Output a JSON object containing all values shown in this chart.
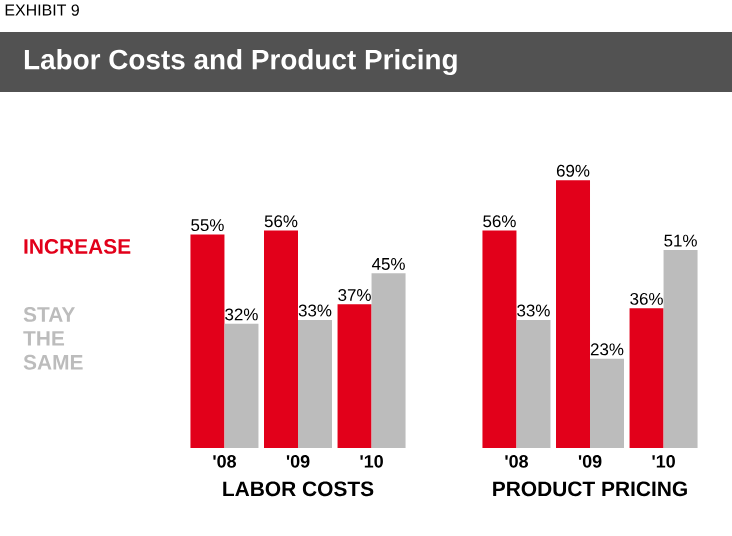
{
  "chart_data": [
    {
      "type": "bar",
      "title": "Labor Costs and Product Pricing",
      "annotations": [
        "EXHIBIT 9"
      ],
      "xlabel": "LABOR COSTS",
      "categories": [
        "'08",
        "'09",
        "'10"
      ],
      "legend": "left",
      "series": [
        {
          "name": "INCREASE",
          "color": "#e2001a",
          "values": [
            55,
            56,
            37
          ],
          "value_labels": [
            "55%",
            "56%",
            "37%"
          ]
        },
        {
          "name": "STAY THE SAME",
          "color": "#bcbcbc",
          "values": [
            32,
            33,
            45
          ],
          "value_labels": [
            "32%",
            "33%",
            "45%"
          ]
        }
      ]
    },
    {
      "type": "bar",
      "xlabel": "PRODUCT PRICING",
      "categories": [
        "'08",
        "'09",
        "'10"
      ],
      "series": [
        {
          "color": "#e2001a",
          "values": [
            56,
            69,
            36
          ],
          "value_labels": [
            "56%",
            "69%",
            "36%"
          ]
        },
        {
          "color": "#bcbcbc",
          "values": [
            33,
            23,
            51
          ],
          "value_labels": [
            "33%",
            "23%",
            "51%"
          ]
        }
      ]
    }
  ]
}
